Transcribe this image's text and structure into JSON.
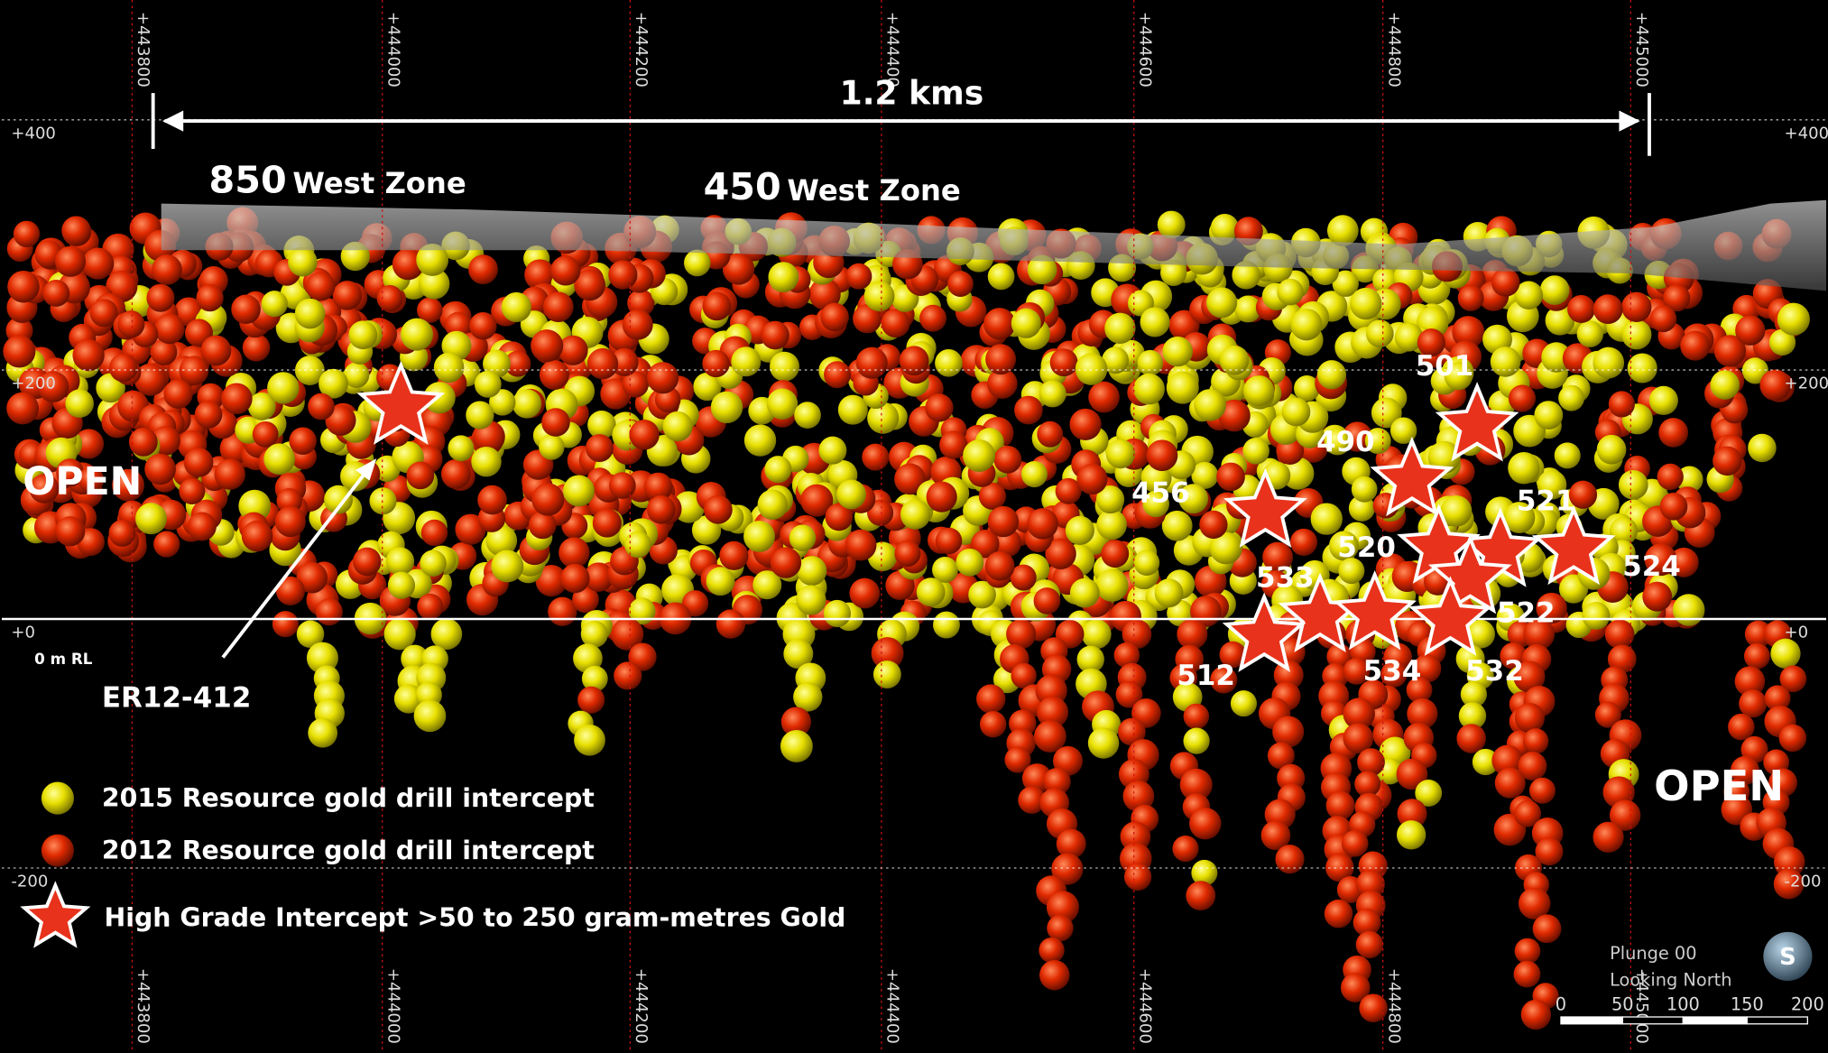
{
  "grid": {
    "eastings": [
      "+443800",
      "+444000",
      "+444200",
      "+444400",
      "+444600",
      "+444800",
      "+445000"
    ],
    "elevations": [
      "+400",
      "+200",
      "+0",
      "-200"
    ]
  },
  "dimension": "1.2 kms",
  "zones": [
    {
      "number": "850",
      "name": "West Zone"
    },
    {
      "number": "450",
      "name": "West Zone"
    }
  ],
  "open_labels": [
    "OPEN",
    "OPEN"
  ],
  "rl_label": "0 m RL",
  "callout": "ER12-412",
  "intercepts": [
    "501",
    "490",
    "456",
    "521",
    "520",
    "524",
    "533",
    "522",
    "512",
    "534",
    "532"
  ],
  "legend": [
    "2015 Resource gold drill intercept",
    "2012 Resource gold drill intercept",
    "High Grade Intercept >50 to 250 gram-metres Gold"
  ],
  "view": {
    "plunge": "Plunge 00",
    "direction": "Looking North",
    "compass": "S"
  },
  "scale": [
    "0",
    "50",
    "100",
    "150",
    "200"
  ]
}
